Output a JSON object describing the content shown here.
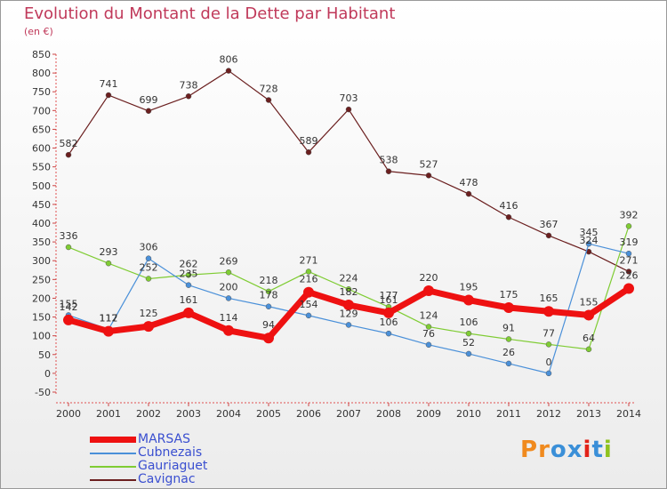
{
  "title": "Evolution du Montant de la Dette par Habitant",
  "unit": "(en €)",
  "brand": {
    "text": "Proxiti",
    "colors": [
      "#f08a1e",
      "#f08a1e",
      "#3a8fd8",
      "#3a8fd8",
      "#e2231a",
      "#3a8fd8",
      "#8fc31f"
    ]
  },
  "chart_data": {
    "type": "line",
    "x": [
      "2000",
      "2001",
      "2002",
      "2003",
      "2004",
      "2005",
      "2006",
      "2007",
      "2008",
      "2009",
      "2010",
      "2011",
      "2012",
      "2013",
      "2014"
    ],
    "ylim": [
      -50,
      850
    ],
    "yticks": [
      -50,
      0,
      50,
      100,
      150,
      200,
      250,
      300,
      350,
      400,
      450,
      500,
      550,
      600,
      650,
      700,
      750,
      800,
      850
    ],
    "grid": false,
    "legend_position": "bottom-left",
    "series": [
      {
        "name": "MARSAS",
        "color": "#ee1111",
        "values": [
          142,
          112,
          125,
          161,
          114,
          94,
          216,
          182,
          161,
          220,
          195,
          175,
          165,
          155,
          226
        ]
      },
      {
        "name": "Cubnezais",
        "color": "#4a90d9",
        "values": [
          155,
          117,
          306,
          235,
          200,
          178,
          154,
          129,
          106,
          76,
          52,
          26,
          0,
          345,
          319
        ]
      },
      {
        "name": "Gauriaguet",
        "color": "#7fcc33",
        "values": [
          336,
          293,
          252,
          262,
          269,
          218,
          271,
          224,
          177,
          124,
          106,
          91,
          77,
          64,
          392
        ]
      },
      {
        "name": "Cavignac",
        "color": "#6b1f1f",
        "values": [
          582,
          741,
          699,
          738,
          806,
          728,
          589,
          703,
          538,
          527,
          478,
          416,
          367,
          324,
          271
        ]
      }
    ]
  }
}
